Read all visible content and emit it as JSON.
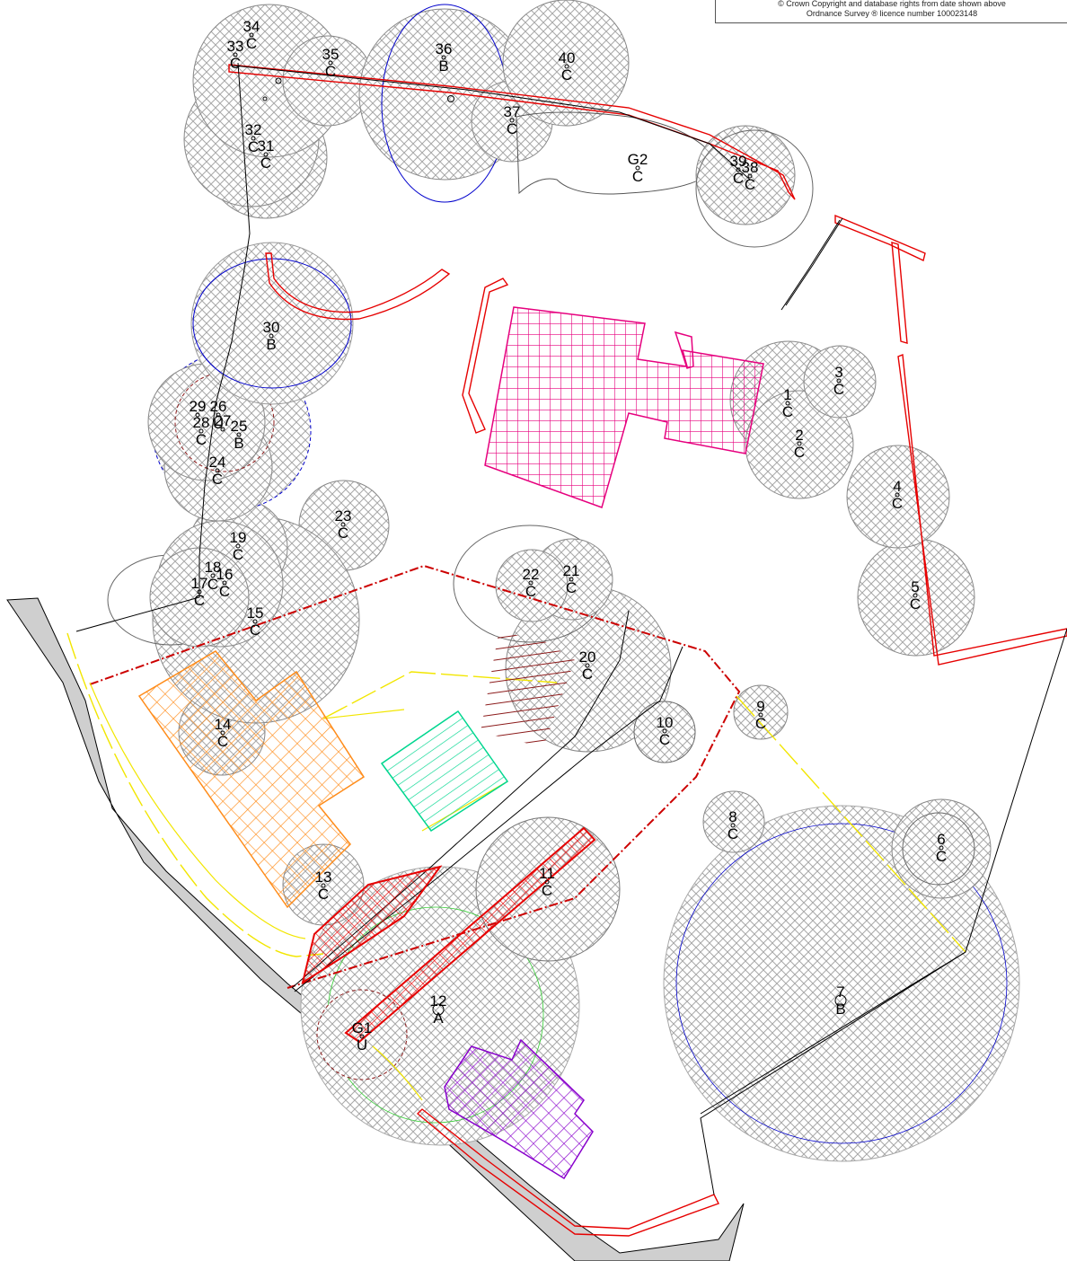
{
  "copyright": {
    "line1": "© Crown Copyright and database rights from date shown above",
    "line2": "Ordnance Survey ® licence number 100023148"
  },
  "colors": {
    "canopy_hatch": "#a8a8a8",
    "canopy_outline": "#6e6e6e",
    "root_protection_blue": "#0000cc",
    "tree_u_dashed": "#8b1a1a",
    "site_boundary": "#cc0000",
    "house_magenta": "#e6007e",
    "building_orange": "#ff8c1a",
    "shed_green": "#00d68f",
    "area_maroon": "#8b1a1a",
    "area_red": "#e60000",
    "area_purple": "#8800cc",
    "path_yellow": "#f2e600",
    "road_grey": "#cfcfcf",
    "tree12_green": "#33cc33"
  },
  "trees": [
    {
      "id": "1",
      "cat": "C"
    },
    {
      "id": "2",
      "cat": "C"
    },
    {
      "id": "3",
      "cat": "C"
    },
    {
      "id": "4",
      "cat": "C"
    },
    {
      "id": "5",
      "cat": "C"
    },
    {
      "id": "6",
      "cat": "C"
    },
    {
      "id": "7",
      "cat": "B"
    },
    {
      "id": "8",
      "cat": "C"
    },
    {
      "id": "9",
      "cat": "C"
    },
    {
      "id": "10",
      "cat": "C"
    },
    {
      "id": "11",
      "cat": "C"
    },
    {
      "id": "12",
      "cat": "A"
    },
    {
      "id": "13",
      "cat": "C"
    },
    {
      "id": "14",
      "cat": "C"
    },
    {
      "id": "15",
      "cat": "C"
    },
    {
      "id": "16",
      "cat": "C"
    },
    {
      "id": "17",
      "cat": "C"
    },
    {
      "id": "18",
      "cat": "C"
    },
    {
      "id": "19",
      "cat": "C"
    },
    {
      "id": "20",
      "cat": "C"
    },
    {
      "id": "21",
      "cat": "C"
    },
    {
      "id": "22",
      "cat": "C"
    },
    {
      "id": "23",
      "cat": "C"
    },
    {
      "id": "24",
      "cat": "C"
    },
    {
      "id": "25",
      "cat": "B"
    },
    {
      "id": "26",
      "cat": "U"
    },
    {
      "id": "27",
      "cat": ""
    },
    {
      "id": "28",
      "cat": "C"
    },
    {
      "id": "29",
      "cat": ""
    },
    {
      "id": "30",
      "cat": "B"
    },
    {
      "id": "31",
      "cat": "C"
    },
    {
      "id": "32",
      "cat": "C"
    },
    {
      "id": "33",
      "cat": "C"
    },
    {
      "id": "34",
      "cat": "C"
    },
    {
      "id": "35",
      "cat": "C"
    },
    {
      "id": "36",
      "cat": "B"
    },
    {
      "id": "37",
      "cat": "C"
    },
    {
      "id": "38",
      "cat": "C"
    },
    {
      "id": "39",
      "cat": "C"
    },
    {
      "id": "40",
      "cat": "C"
    },
    {
      "id": "G1",
      "cat": "U"
    },
    {
      "id": "G2",
      "cat": "C"
    }
  ]
}
